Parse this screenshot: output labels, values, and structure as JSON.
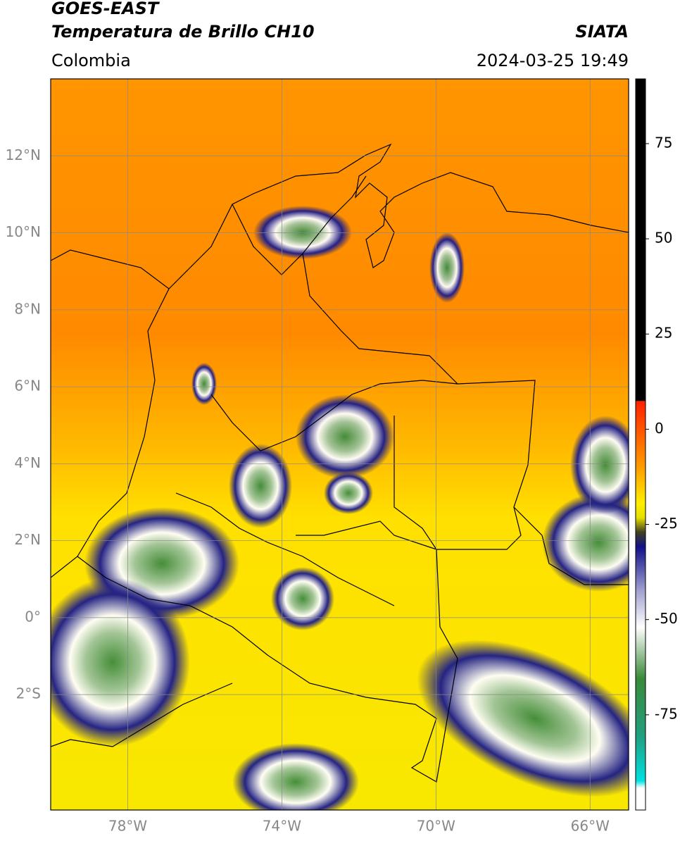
{
  "header": {
    "title": "GOES-EAST",
    "subtitle": "Temperatura de Brillo CH10",
    "source": "SIATA",
    "region": "Colombia",
    "timestamp": "2024-03-25 19:49"
  },
  "map": {
    "lonlim": [
      -80,
      -65
    ],
    "latlim": [
      -5,
      14
    ],
    "latticks": [
      {
        "value": 12,
        "label": "12°N"
      },
      {
        "value": 10,
        "label": "10°N"
      },
      {
        "value": 8,
        "label": "8°N"
      },
      {
        "value": 6,
        "label": "6°N"
      },
      {
        "value": 4,
        "label": "4°N"
      },
      {
        "value": 2,
        "label": "2°N"
      },
      {
        "value": 0,
        "label": "0°"
      },
      {
        "value": -2,
        "label": "2°S"
      }
    ],
    "lonticks": [
      {
        "value": -78,
        "label": "78°W"
      },
      {
        "value": -74,
        "label": "74°W"
      },
      {
        "value": -70,
        "label": "70°W"
      },
      {
        "value": -66,
        "label": "66°W"
      }
    ],
    "grid": true
  },
  "colorbar": {
    "lim": [
      -100,
      92
    ],
    "ticks": [
      75,
      50,
      25,
      0,
      -25,
      -50,
      -75
    ]
  }
}
